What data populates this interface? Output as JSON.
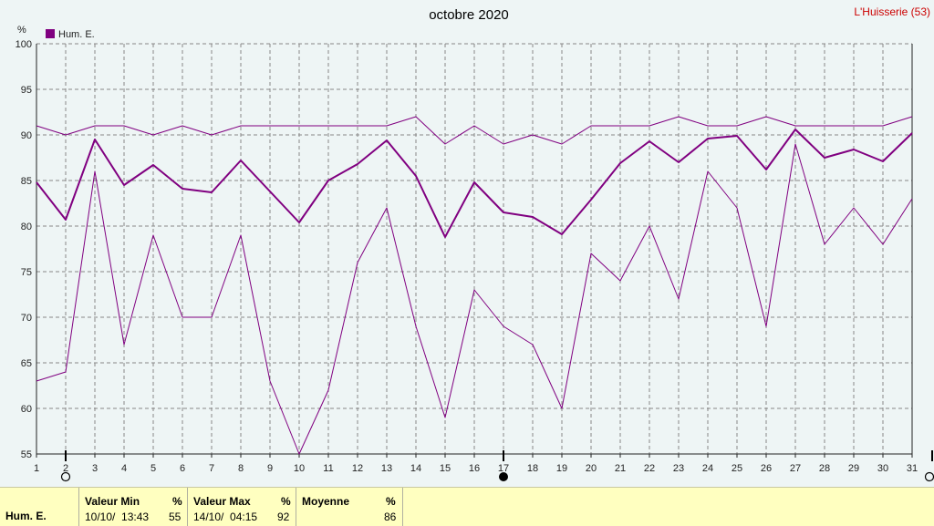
{
  "header": {
    "title": "octobre 2020",
    "station": "L'Huisserie (53)",
    "unit_symbol": "%",
    "legend_label": "Hum. E."
  },
  "colors": {
    "series": "#800080",
    "station_text": "#cc0000",
    "grid": "#888888",
    "background": "#eef5f5",
    "footer_bg": "#ffffc0"
  },
  "chart_data": {
    "type": "line",
    "title": "octobre 2020",
    "ylabel": "%",
    "ylim": [
      55,
      100
    ],
    "yticks": [
      55,
      60,
      65,
      70,
      75,
      80,
      85,
      90,
      95,
      100
    ],
    "x": [
      1,
      2,
      3,
      4,
      5,
      6,
      7,
      8,
      9,
      10,
      11,
      12,
      13,
      14,
      15,
      16,
      17,
      18,
      19,
      20,
      21,
      22,
      23,
      24,
      25,
      26,
      27,
      28,
      29,
      30,
      31
    ],
    "xlim": [
      1,
      31
    ],
    "grid": true,
    "legend": "top-left",
    "series": [
      {
        "name": "Hum. E.",
        "role": "mean",
        "values": [
          84.8,
          80.7,
          89.5,
          84.5,
          86.7,
          84.1,
          83.7,
          87.2,
          83.8,
          80.4,
          85.0,
          86.8,
          89.4,
          85.5,
          78.8,
          84.8,
          81.5,
          81.0,
          79.1,
          82.9,
          86.9,
          89.3,
          87.0,
          89.6,
          89.9,
          86.2,
          90.6,
          87.5,
          88.4,
          87.1,
          90.2
        ]
      },
      {
        "role": "max",
        "values": [
          91,
          90,
          91,
          91,
          90,
          91,
          90,
          91,
          91,
          91,
          91,
          91,
          91,
          92,
          89,
          91,
          89,
          90,
          89,
          91,
          91,
          91,
          92,
          91,
          91,
          92,
          91,
          91,
          91,
          91,
          92
        ]
      },
      {
        "role": "min",
        "values": [
          63,
          64,
          86,
          67,
          79,
          70,
          70,
          79,
          63,
          55,
          62,
          76,
          82,
          69,
          59,
          73,
          69,
          67,
          60,
          77,
          74,
          80,
          72,
          86,
          82,
          69,
          89,
          78,
          82,
          78,
          83
        ]
      }
    ],
    "markers": [
      {
        "x": 2,
        "type": "open-circle"
      },
      {
        "x": 17,
        "type": "filled-circle"
      },
      {
        "x": 32,
        "type": "open-circle"
      }
    ]
  },
  "footer": {
    "series_label": "Hum. E.",
    "min": {
      "label": "Valeur Min",
      "unit": "%",
      "date": "10/10/  13:43",
      "value": "55"
    },
    "max": {
      "label": "Valeur Max",
      "unit": "%",
      "date": "14/10/  04:15",
      "value": "92"
    },
    "mean": {
      "label": "Moyenne",
      "unit": "%",
      "value": "86"
    }
  }
}
